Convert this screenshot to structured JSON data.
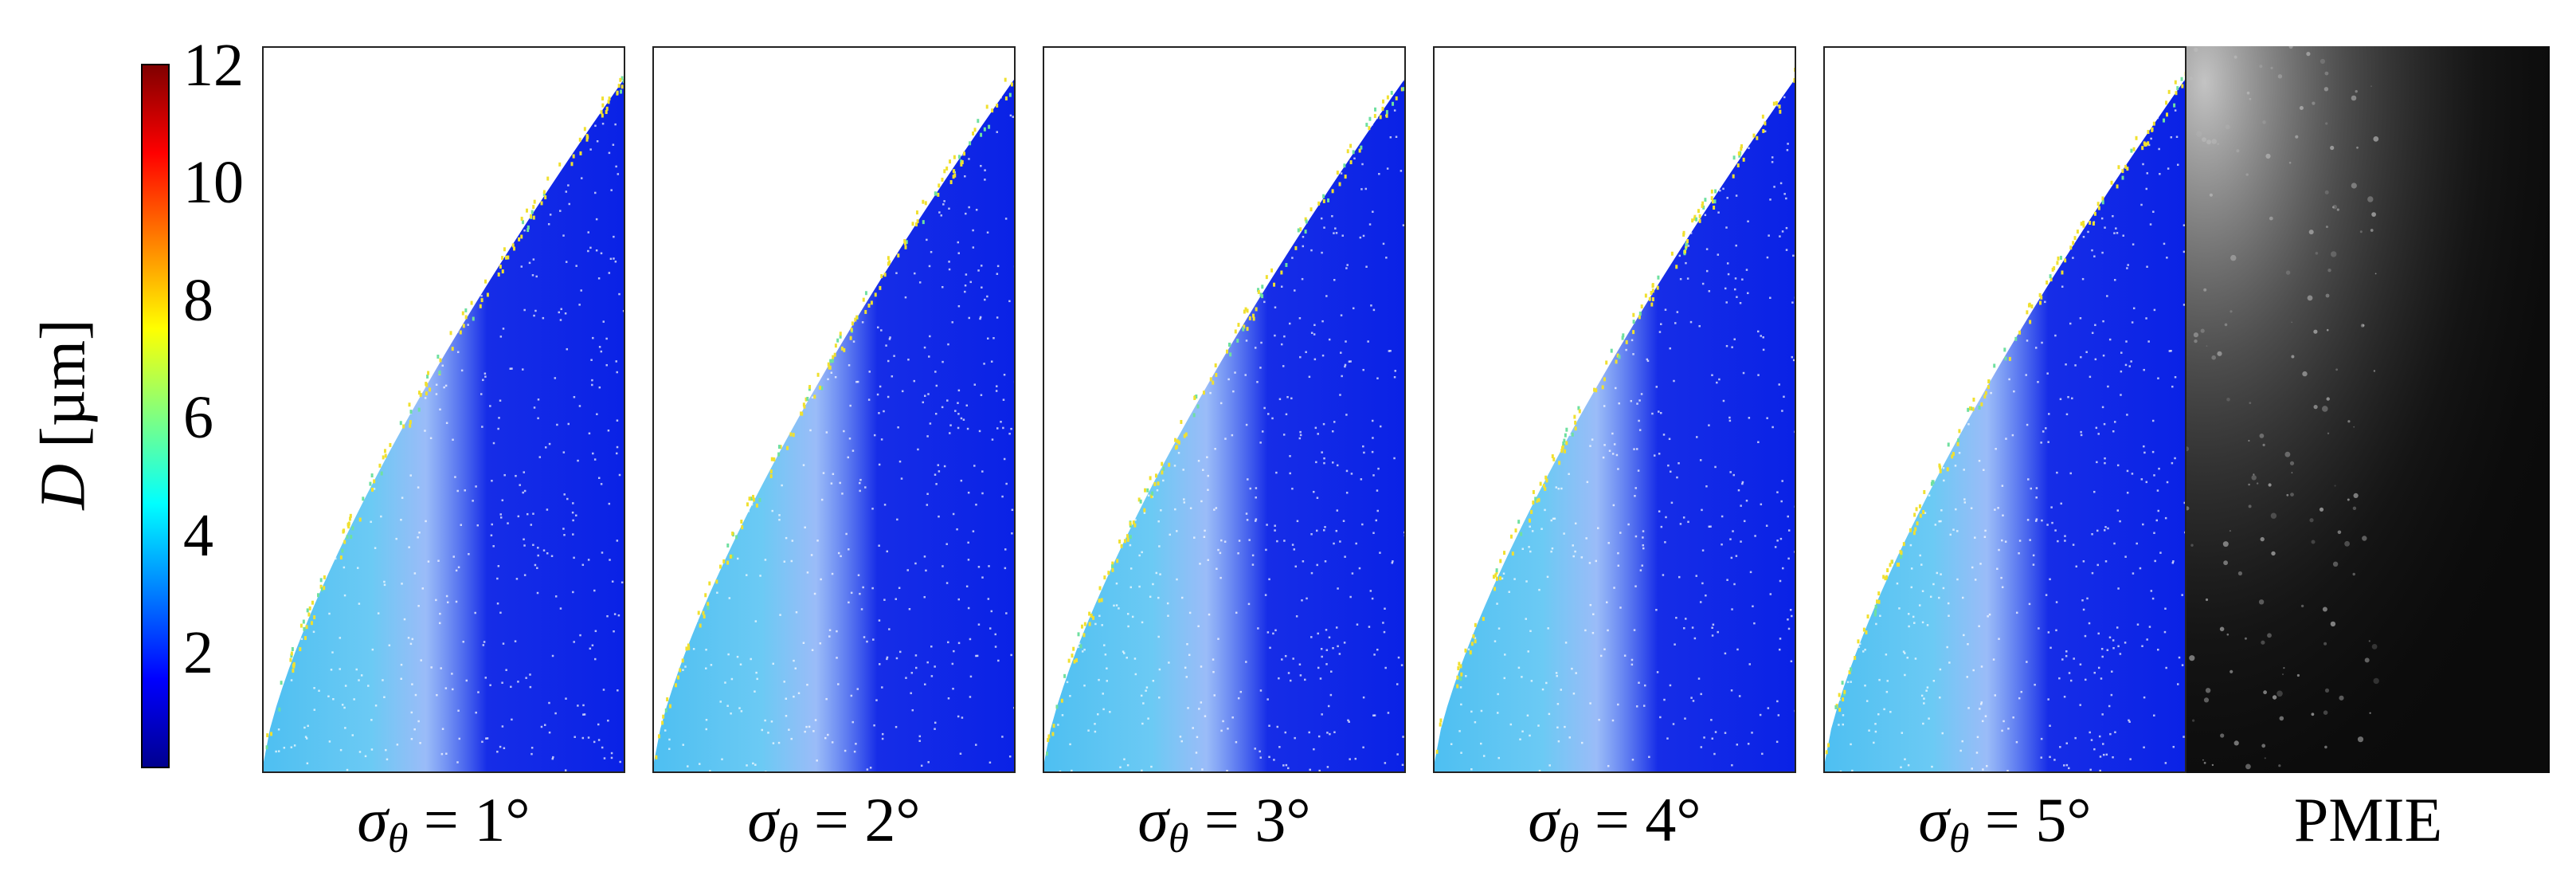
{
  "colorbar": {
    "label_var": "D",
    "label_unit": " [µm]",
    "ticks": [
      "12",
      "10",
      "8",
      "6",
      "4",
      "2"
    ],
    "range": [
      0,
      12
    ],
    "colormap": [
      "#00008f",
      "#0000ff",
      "#0080ff",
      "#00ffff",
      "#80ff80",
      "#ffff00",
      "#ff8000",
      "#ff0000",
      "#800000"
    ]
  },
  "panels": [
    {
      "symbol": "σ",
      "subscript": "θ",
      "rest": " = 1°"
    },
    {
      "symbol": "σ",
      "subscript": "θ",
      "rest": " = 2°"
    },
    {
      "symbol": "σ",
      "subscript": "θ",
      "rest": " = 3°"
    },
    {
      "symbol": "σ",
      "subscript": "θ",
      "rest": " = 4°"
    },
    {
      "symbol": "σ",
      "subscript": "θ",
      "rest": " = 5°"
    }
  ],
  "pmie_label": "PMIE",
  "colors": {
    "dense_blue": "#0a22e6",
    "light_blue": "#3ab8f0",
    "streak_yellow": "#f0e030",
    "background": "#ffffff",
    "pmie_bg": "#0b0b0b"
  }
}
